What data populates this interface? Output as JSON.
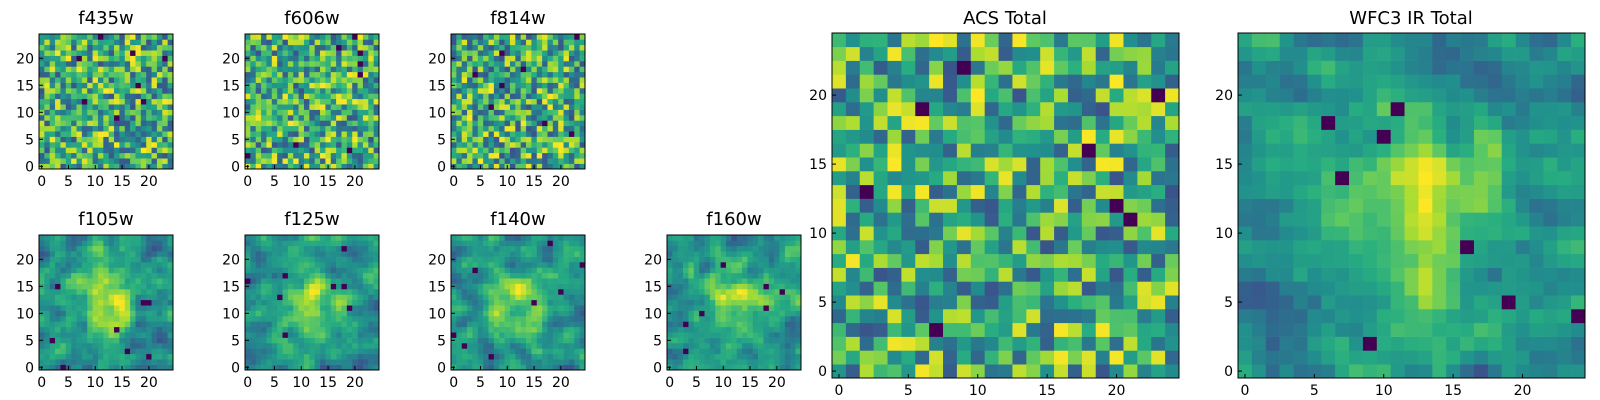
{
  "chart_data": [
    {
      "type": "heatmap",
      "title": "f435w",
      "xticks": [
        "0",
        "5",
        "10",
        "15",
        "20"
      ],
      "yticks": [
        "0",
        "5",
        "10",
        "15",
        "20"
      ],
      "xlim": [
        -0.5,
        24.5
      ],
      "ylim": [
        -0.5,
        24.5
      ],
      "colormap": "viridis",
      "grid": false,
      "values": []
    },
    {
      "type": "heatmap",
      "title": "f606w",
      "xticks": [
        "0",
        "5",
        "10",
        "15",
        "20"
      ],
      "yticks": [
        "0",
        "5",
        "10",
        "15",
        "20"
      ],
      "xlim": [
        -0.5,
        24.5
      ],
      "ylim": [
        -0.5,
        24.5
      ],
      "colormap": "viridis",
      "grid": false,
      "values": []
    },
    {
      "type": "heatmap",
      "title": "f814w",
      "xticks": [
        "0",
        "5",
        "10",
        "15",
        "20"
      ],
      "yticks": [
        "0",
        "5",
        "10",
        "15",
        "20"
      ],
      "xlim": [
        -0.5,
        24.5
      ],
      "ylim": [
        -0.5,
        24.5
      ],
      "colormap": "viridis",
      "grid": false,
      "values": []
    },
    {
      "type": "heatmap",
      "title": "f105w",
      "xticks": [
        "0",
        "5",
        "10",
        "15",
        "20"
      ],
      "yticks": [
        "0",
        "5",
        "10",
        "15",
        "20"
      ],
      "xlim": [
        -0.5,
        24.5
      ],
      "ylim": [
        -0.5,
        24.5
      ],
      "colormap": "viridis",
      "grid": false,
      "values": []
    },
    {
      "type": "heatmap",
      "title": "f125w",
      "xticks": [
        "0",
        "5",
        "10",
        "15",
        "20"
      ],
      "yticks": [
        "0",
        "5",
        "10",
        "15",
        "20"
      ],
      "xlim": [
        -0.5,
        24.5
      ],
      "ylim": [
        -0.5,
        24.5
      ],
      "colormap": "viridis",
      "grid": false,
      "values": []
    },
    {
      "type": "heatmap",
      "title": "f140w",
      "xticks": [
        "0",
        "5",
        "10",
        "15",
        "20"
      ],
      "yticks": [
        "0",
        "5",
        "10",
        "15",
        "20"
      ],
      "xlim": [
        -0.5,
        24.5
      ],
      "ylim": [
        -0.5,
        24.5
      ],
      "colormap": "viridis",
      "grid": false,
      "values": []
    },
    {
      "type": "heatmap",
      "title": "f160w",
      "xticks": [
        "0",
        "5",
        "10",
        "15",
        "20"
      ],
      "yticks": [
        "0",
        "5",
        "10",
        "15",
        "20"
      ],
      "xlim": [
        -0.5,
        24.5
      ],
      "ylim": [
        -0.5,
        24.5
      ],
      "colormap": "viridis",
      "grid": false,
      "values": []
    },
    {
      "type": "heatmap",
      "title": "ACS Total",
      "xticks": [
        "0",
        "5",
        "10",
        "15",
        "20"
      ],
      "yticks": [
        "0",
        "5",
        "10",
        "15",
        "20"
      ],
      "xlim": [
        -0.5,
        24.5
      ],
      "ylim": [
        -0.5,
        24.5
      ],
      "colormap": "viridis",
      "grid": false,
      "values": []
    },
    {
      "type": "heatmap",
      "title": "WFC3 IR Total",
      "xticks": [
        "0",
        "5",
        "10",
        "15",
        "20"
      ],
      "yticks": [
        "0",
        "5",
        "10",
        "15",
        "20"
      ],
      "xlim": [
        -0.5,
        24.5
      ],
      "ylim": [
        -0.5,
        24.5
      ],
      "colormap": "viridis",
      "grid": false,
      "values": []
    }
  ]
}
